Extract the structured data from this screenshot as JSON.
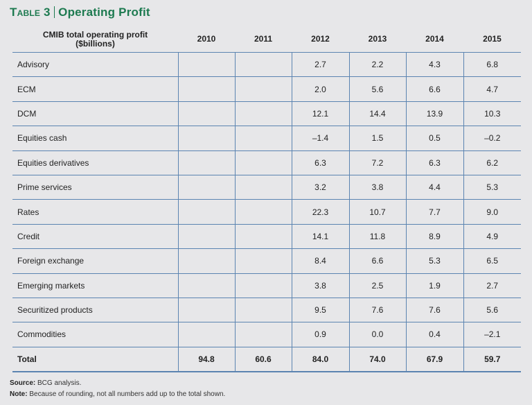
{
  "title": {
    "label": "Table 3",
    "text": "Operating Profit"
  },
  "table": {
    "header": {
      "line1": "CMIB total operating profit",
      "line2": "($billions)"
    },
    "years": [
      "2010",
      "2011",
      "2012",
      "2013",
      "2014",
      "2015"
    ],
    "rows": [
      {
        "label": "Advisory",
        "values": [
          "",
          "",
          "2.7",
          "2.2",
          "4.3",
          "6.8"
        ]
      },
      {
        "label": "ECM",
        "values": [
          "",
          "",
          "2.0",
          "5.6",
          "6.6",
          "4.7"
        ]
      },
      {
        "label": "DCM",
        "values": [
          "",
          "",
          "12.1",
          "14.4",
          "13.9",
          "10.3"
        ]
      },
      {
        "label": "Equities cash",
        "values": [
          "",
          "",
          "–1.4",
          "1.5",
          "0.5",
          "–0.2"
        ]
      },
      {
        "label": "Equities derivatives",
        "values": [
          "",
          "",
          "6.3",
          "7.2",
          "6.3",
          "6.2"
        ]
      },
      {
        "label": "Prime services",
        "values": [
          "",
          "",
          "3.2",
          "3.8",
          "4.4",
          "5.3"
        ]
      },
      {
        "label": "Rates",
        "values": [
          "",
          "",
          "22.3",
          "10.7",
          "7.7",
          "9.0"
        ]
      },
      {
        "label": "Credit",
        "values": [
          "",
          "",
          "14.1",
          "11.8",
          "8.9",
          "4.9"
        ]
      },
      {
        "label": "Foreign exchange",
        "values": [
          "",
          "",
          "8.4",
          "6.6",
          "5.3",
          "6.5"
        ]
      },
      {
        "label": "Emerging markets",
        "values": [
          "",
          "",
          "3.8",
          "2.5",
          "1.9",
          "2.7"
        ]
      },
      {
        "label": "Securitized products",
        "values": [
          "",
          "",
          "9.5",
          "7.6",
          "7.6",
          "5.6"
        ]
      },
      {
        "label": "Commodities",
        "values": [
          "",
          "",
          "0.9",
          "0.0",
          "0.4",
          "–2.1"
        ]
      }
    ],
    "total": {
      "label": "Total",
      "values": [
        "94.8",
        "60.6",
        "84.0",
        "74.0",
        "67.9",
        "59.7"
      ]
    }
  },
  "notes": {
    "source_label": "Source:",
    "source_text": " BCG analysis.",
    "note_label": "Note:",
    "note_text": " Because of rounding, not all numbers add up to the total shown."
  },
  "colors": {
    "title": "#1d7a50",
    "grid": "#5b84b1",
    "background": "#e7e7e9"
  }
}
